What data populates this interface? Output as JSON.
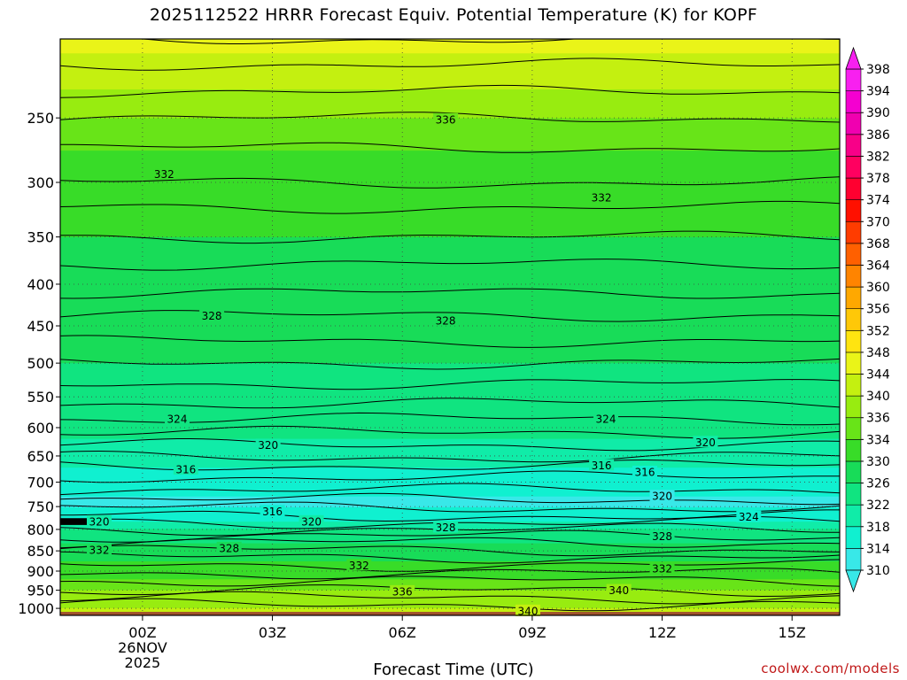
{
  "chart_data": {
    "type": "heatmap",
    "title": "2025112522 HRRR Forecast Equiv. Potential Temperature (K) for KOPF",
    "xlabel": "Forecast Time (UTC)",
    "ylabel": "",
    "y_scale": "log",
    "y_reversed": true,
    "ylim": [
      1020,
      200
    ],
    "y_ticks": [
      250,
      300,
      350,
      400,
      450,
      500,
      550,
      600,
      650,
      700,
      750,
      800,
      850,
      900,
      950,
      1000
    ],
    "x_range_hours": [
      -1.9,
      16.1
    ],
    "x_ticks": [
      {
        "hour": 0,
        "label": "00Z",
        "sub1": "26NOV",
        "sub2": "2025"
      },
      {
        "hour": 3,
        "label": "03Z",
        "sub1": "",
        "sub2": ""
      },
      {
        "hour": 6,
        "label": "06Z",
        "sub1": "",
        "sub2": ""
      },
      {
        "hour": 9,
        "label": "09Z",
        "sub1": "",
        "sub2": ""
      },
      {
        "hour": 12,
        "label": "12Z",
        "sub1": "",
        "sub2": ""
      },
      {
        "hour": 15,
        "label": "15Z",
        "sub1": "",
        "sub2": ""
      }
    ],
    "grid": true,
    "colorbar": {
      "units": "K",
      "labels": [
        310,
        314,
        318,
        322,
        326,
        330,
        334,
        336,
        340,
        344,
        348,
        352,
        356,
        360,
        364,
        368,
        370,
        374,
        378,
        382,
        386,
        390,
        394,
        398
      ],
      "colors": [
        "#38e8e8",
        "#10f0d0",
        "#10eca8",
        "#10e480",
        "#18dc58",
        "#38dc28",
        "#68e418",
        "#98ec10",
        "#c4f010",
        "#eaf418",
        "#ffe410",
        "#ffc808",
        "#ffa800",
        "#ff8400",
        "#ff6000",
        "#ff3c00",
        "#ff1000",
        "#ff0030",
        "#ff0060",
        "#f80088",
        "#f000b0",
        "#f400d0",
        "#f820f0"
      ]
    },
    "levels_profile": [
      {
        "p": 200,
        "theta": 345
      },
      {
        "p": 215,
        "theta": 343
      },
      {
        "p": 250,
        "theta": 336
      },
      {
        "p": 300,
        "theta": 332
      },
      {
        "p": 350,
        "theta": 330
      },
      {
        "p": 400,
        "theta": 329
      },
      {
        "p": 450,
        "theta": 328
      },
      {
        "p": 500,
        "theta": 326
      },
      {
        "p": 550,
        "theta": 325
      },
      {
        "p": 600,
        "theta": 323
      },
      {
        "p": 650,
        "theta": 320
      },
      {
        "p": 700,
        "theta": 316
      },
      {
        "p": 740,
        "theta": 313
      },
      {
        "p": 770,
        "theta": 316
      },
      {
        "p": 800,
        "theta": 322
      },
      {
        "p": 850,
        "theta": 328
      },
      {
        "p": 900,
        "theta": 332
      },
      {
        "p": 950,
        "theta": 336
      },
      {
        "p": 1000,
        "theta": 340
      }
    ],
    "contour_labels": [
      {
        "hour": 7.0,
        "p": 251,
        "text": "336"
      },
      {
        "hour": 0.5,
        "p": 293,
        "text": "332"
      },
      {
        "hour": 10.6,
        "p": 313,
        "text": "332"
      },
      {
        "hour": 1.6,
        "p": 437,
        "text": "328"
      },
      {
        "hour": 7.0,
        "p": 443,
        "text": "328"
      },
      {
        "hour": 0.8,
        "p": 585,
        "text": "324"
      },
      {
        "hour": 10.7,
        "p": 585,
        "text": "324"
      },
      {
        "hour": 2.9,
        "p": 630,
        "text": "320"
      },
      {
        "hour": 13.0,
        "p": 625,
        "text": "320"
      },
      {
        "hour": 1.0,
        "p": 675,
        "text": "316"
      },
      {
        "hour": 10.6,
        "p": 667,
        "text": "316"
      },
      {
        "hour": 11.6,
        "p": 680,
        "text": "316"
      },
      {
        "hour": 12.0,
        "p": 728,
        "text": "320"
      },
      {
        "hour": 3.0,
        "p": 760,
        "text": "316"
      },
      {
        "hour": 3.9,
        "p": 782,
        "text": "320"
      },
      {
        "hour": -1.0,
        "p": 782,
        "text": "320"
      },
      {
        "hour": 14.0,
        "p": 772,
        "text": "324"
      },
      {
        "hour": 7.0,
        "p": 795,
        "text": "328"
      },
      {
        "hour": 12.0,
        "p": 815,
        "text": "328"
      },
      {
        "hour": 2.0,
        "p": 843,
        "text": "328"
      },
      {
        "hour": -1.0,
        "p": 848,
        "text": "332"
      },
      {
        "hour": 5.0,
        "p": 885,
        "text": "332"
      },
      {
        "hour": 12.0,
        "p": 893,
        "text": "332"
      },
      {
        "hour": 6.0,
        "p": 953,
        "text": "336"
      },
      {
        "hour": 11.0,
        "p": 950,
        "text": "340"
      },
      {
        "hour": 8.9,
        "p": 1007,
        "text": "340"
      }
    ]
  },
  "credit": "coolwx.com/models"
}
